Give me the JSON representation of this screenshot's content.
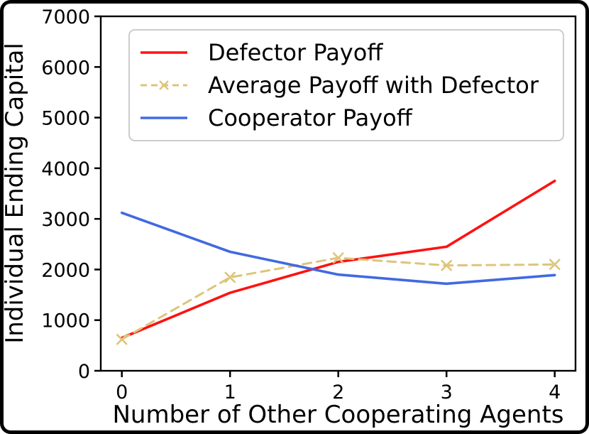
{
  "chart_data": {
    "type": "line",
    "title": "",
    "xlabel": "Number of Other Cooperating Agents",
    "ylabel": "Individual Ending Capital",
    "x": [
      0,
      1,
      2,
      3,
      4
    ],
    "xticks": [
      0,
      1,
      2,
      3,
      4
    ],
    "yticks": [
      0,
      1000,
      2000,
      3000,
      4000,
      5000,
      6000,
      7000
    ],
    "xlim": [
      -0.27,
      4.19
    ],
    "ylim": [
      0,
      7000
    ],
    "grid": false,
    "legend_position": "upper left",
    "legend_border_color": "#cccccc",
    "series": [
      {
        "name": "Defector Payoff",
        "color": "#ff1111",
        "style": "solid",
        "marker": "none",
        "values": [
          650,
          1540,
          2150,
          2450,
          3750
        ]
      },
      {
        "name": "Average Payoff with Defector",
        "color": "#ddc57a",
        "style": "dashed",
        "marker": "x",
        "values": [
          620,
          1845,
          2230,
          2080,
          2100
        ]
      },
      {
        "name": "Cooperator Payoff",
        "color": "#4169e1",
        "style": "solid",
        "marker": "none",
        "values": [
          3120,
          2350,
          1900,
          1720,
          1890
        ]
      }
    ]
  },
  "figure": {
    "background": "#ffffff",
    "border_color": "#000000",
    "axis_color": "#000000"
  }
}
